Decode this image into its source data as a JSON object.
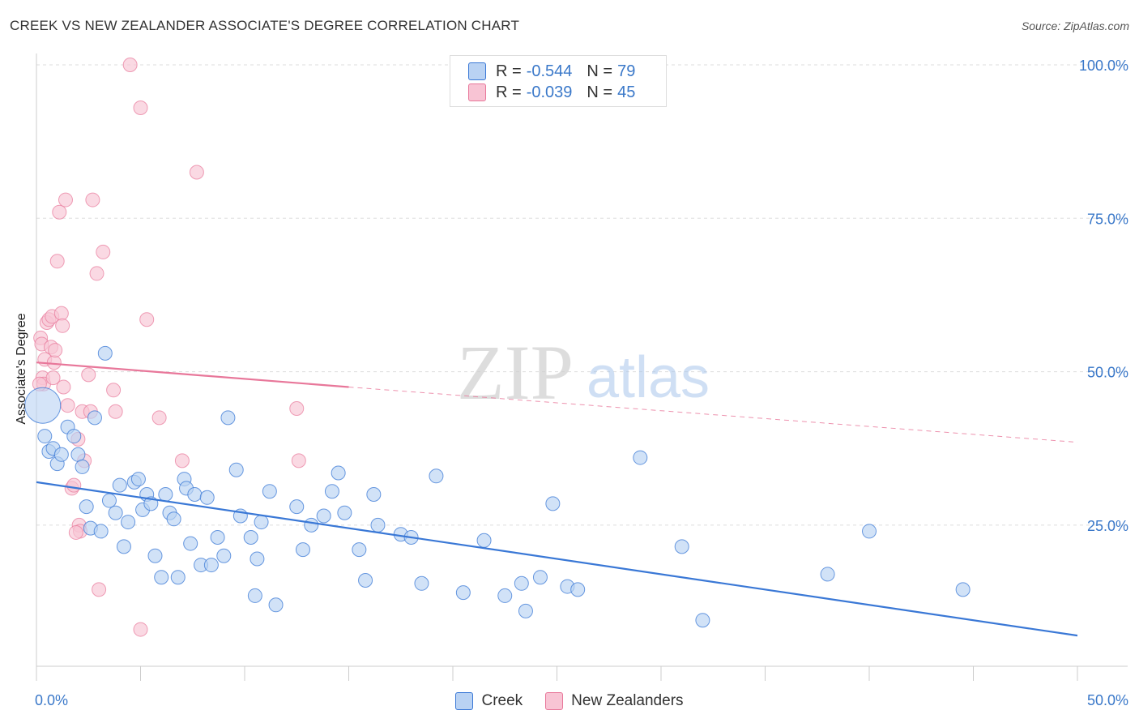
{
  "header": {
    "title": "CREEK VS NEW ZEALANDER ASSOCIATE'S DEGREE CORRELATION CHART",
    "source": "Source: ZipAtlas.com"
  },
  "watermark": {
    "zip": "ZIP",
    "atlas": "atlas"
  },
  "legend_top": {
    "rows": [
      {
        "r_label": "R =",
        "r_value": "-0.544",
        "n_label": "N =",
        "n_value": "79"
      },
      {
        "r_label": "R =",
        "r_value": "-0.039",
        "n_label": "N =",
        "n_value": "45"
      }
    ]
  },
  "legend_bottom": {
    "items": [
      "Creek",
      "New Zealanders"
    ]
  },
  "colors": {
    "creek": "#3a78d6",
    "creek_fill": "#b9d2f3",
    "nz": "#e8779a",
    "nz_fill": "#f8c4d4",
    "axis_text": "#3a78c9"
  },
  "chart_data": {
    "type": "scatter",
    "title": "CREEK VS NEW ZEALANDER ASSOCIATE'S DEGREE CORRELATION CHART",
    "ylabel": "Associate's Degree",
    "xlabel": "",
    "xlim": [
      0,
      50
    ],
    "ylim": [
      2,
      100
    ],
    "x_tick_labels": [
      {
        "value": 0,
        "label": "0.0%"
      },
      {
        "value": 50,
        "label": "50.0%"
      }
    ],
    "y_tick_labels": [
      {
        "value": 25,
        "label": "25.0%"
      },
      {
        "value": 50,
        "label": "50.0%"
      },
      {
        "value": 75,
        "label": "75.0%"
      },
      {
        "value": 100,
        "label": "100.0%"
      }
    ],
    "grid": "dashed horizontal",
    "legend_placement": "top-center",
    "series": [
      {
        "name": "Creek",
        "r": -0.544,
        "n": 79,
        "trend": {
          "x": [
            0,
            50
          ],
          "y": [
            32,
            7
          ],
          "style": "solid"
        },
        "points": [
          [
            0.3,
            44.5
          ],
          [
            0.4,
            39.5
          ],
          [
            0.6,
            37
          ],
          [
            0.8,
            37.5
          ],
          [
            1.0,
            35
          ],
          [
            1.2,
            36.5
          ],
          [
            1.5,
            41
          ],
          [
            1.8,
            39.5
          ],
          [
            2.0,
            36.5
          ],
          [
            2.2,
            34.5
          ],
          [
            2.4,
            28
          ],
          [
            2.6,
            24.5
          ],
          [
            2.8,
            42.5
          ],
          [
            3.1,
            24
          ],
          [
            3.3,
            53
          ],
          [
            3.5,
            29
          ],
          [
            3.8,
            27
          ],
          [
            4.0,
            31.5
          ],
          [
            4.2,
            21.5
          ],
          [
            4.4,
            25.5
          ],
          [
            4.7,
            32
          ],
          [
            4.9,
            32.5
          ],
          [
            5.1,
            27.5
          ],
          [
            5.3,
            30
          ],
          [
            5.5,
            28.5
          ],
          [
            5.7,
            20
          ],
          [
            6.0,
            16.5
          ],
          [
            6.2,
            30
          ],
          [
            6.4,
            27
          ],
          [
            6.6,
            26
          ],
          [
            6.8,
            16.5
          ],
          [
            7.1,
            32.5
          ],
          [
            7.2,
            31
          ],
          [
            7.4,
            22
          ],
          [
            7.6,
            30
          ],
          [
            7.9,
            18.5
          ],
          [
            8.2,
            29.5
          ],
          [
            8.4,
            18.5
          ],
          [
            8.7,
            23
          ],
          [
            9.0,
            20
          ],
          [
            9.2,
            42.5
          ],
          [
            9.6,
            34
          ],
          [
            9.8,
            26.5
          ],
          [
            10.3,
            23
          ],
          [
            10.5,
            13.5
          ],
          [
            10.6,
            19.5
          ],
          [
            10.8,
            25.5
          ],
          [
            11.2,
            30.5
          ],
          [
            11.5,
            12
          ],
          [
            12.5,
            28
          ],
          [
            12.8,
            21
          ],
          [
            13.2,
            25
          ],
          [
            13.8,
            26.5
          ],
          [
            14.2,
            30.5
          ],
          [
            14.5,
            33.5
          ],
          [
            14.8,
            27
          ],
          [
            15.5,
            21
          ],
          [
            15.8,
            16
          ],
          [
            16.2,
            30
          ],
          [
            16.4,
            25
          ],
          [
            17.5,
            23.5
          ],
          [
            18.0,
            23
          ],
          [
            18.5,
            15.5
          ],
          [
            19.2,
            33
          ],
          [
            20.5,
            14
          ],
          [
            21.5,
            22.5
          ],
          [
            22.5,
            13.5
          ],
          [
            23.3,
            15.5
          ],
          [
            23.5,
            11
          ],
          [
            24.2,
            16.5
          ],
          [
            24.8,
            28.5
          ],
          [
            25.5,
            15
          ],
          [
            26.0,
            14.5
          ],
          [
            29.0,
            36
          ],
          [
            31.0,
            21.5
          ],
          [
            32.0,
            9.5
          ],
          [
            38.0,
            17
          ],
          [
            40.0,
            24
          ],
          [
            44.5,
            14.5
          ]
        ]
      },
      {
        "name": "New Zealanders",
        "r": -0.039,
        "n": 45,
        "trend": {
          "x": [
            0,
            15,
            50
          ],
          "y": [
            51.5,
            47.5,
            38.5
          ],
          "style": "solid then dashed"
        },
        "points": [
          [
            0.2,
            55.5
          ],
          [
            0.25,
            54.5
          ],
          [
            0.3,
            49
          ],
          [
            0.35,
            48
          ],
          [
            0.4,
            52
          ],
          [
            0.5,
            58
          ],
          [
            0.6,
            58.5
          ],
          [
            0.7,
            54
          ],
          [
            0.75,
            59
          ],
          [
            0.8,
            49
          ],
          [
            0.85,
            51.5
          ],
          [
            0.9,
            53.5
          ],
          [
            1.0,
            68
          ],
          [
            1.1,
            76
          ],
          [
            1.2,
            59.5
          ],
          [
            1.25,
            57.5
          ],
          [
            1.3,
            47.5
          ],
          [
            1.4,
            78
          ],
          [
            1.5,
            44.5
          ],
          [
            1.7,
            31
          ],
          [
            1.8,
            31.5
          ],
          [
            2.0,
            39
          ],
          [
            2.05,
            25
          ],
          [
            2.1,
            24
          ],
          [
            2.2,
            43.5
          ],
          [
            2.3,
            35.5
          ],
          [
            2.5,
            49.5
          ],
          [
            2.6,
            43.5
          ],
          [
            2.7,
            78
          ],
          [
            2.9,
            66
          ],
          [
            3.0,
            14.5
          ],
          [
            3.2,
            69.5
          ],
          [
            3.7,
            47
          ],
          [
            3.8,
            43.5
          ],
          [
            4.5,
            100
          ],
          [
            5.0,
            93
          ],
          [
            5.0,
            8
          ],
          [
            5.3,
            58.5
          ],
          [
            5.9,
            42.5
          ],
          [
            7.0,
            35.5
          ],
          [
            7.7,
            82.5
          ],
          [
            12.5,
            44
          ],
          [
            12.6,
            35.5
          ],
          [
            0.15,
            48
          ],
          [
            1.9,
            23.8
          ]
        ]
      }
    ]
  }
}
